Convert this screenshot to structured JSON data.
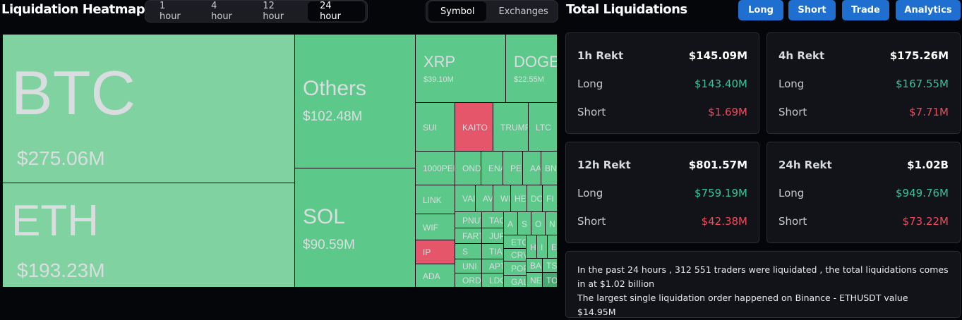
{
  "heatmap": {
    "title": "Liquidation Heatmap",
    "time_tabs": [
      "1 hour",
      "4 hour",
      "12 hour",
      "24 hour"
    ],
    "active_time": "24 hour",
    "view_tabs": [
      "Symbol",
      "Exchanges"
    ],
    "active_view": "Symbol",
    "colors": {
      "long": "#5cc98a",
      "long_light": "#80d3a0",
      "short": "#e5566a",
      "dark": "#4aa873"
    },
    "cells": [
      {
        "label": "BTC",
        "value": "$275.06M",
        "tone": "long_light"
      },
      {
        "label": "ETH",
        "value": "$193.23M",
        "tone": "long_light"
      },
      {
        "label": "Others",
        "value": "$102.48M",
        "tone": "long"
      },
      {
        "label": "SOL",
        "value": "$90.59M",
        "tone": "long"
      },
      {
        "label": "XRP",
        "value": "$39.10M",
        "tone": "long"
      },
      {
        "label": "DOGE",
        "value": "$22.55M",
        "tone": "long"
      },
      {
        "label": "SUI",
        "tone": "long"
      },
      {
        "label": "KAITO",
        "tone": "short"
      },
      {
        "label": "TRUMP",
        "tone": "long"
      },
      {
        "label": "LTC",
        "tone": "long"
      },
      {
        "label": "1000PEPE",
        "tone": "long"
      },
      {
        "label": "ONDO",
        "tone": "long"
      },
      {
        "label": "ENA",
        "tone": "long"
      },
      {
        "label": "PEI",
        "tone": "long"
      },
      {
        "label": "AA",
        "tone": "long"
      },
      {
        "label": "BN",
        "tone": "long"
      },
      {
        "label": "LINK",
        "tone": "long"
      },
      {
        "label": "WIF",
        "tone": "long"
      },
      {
        "label": "IP",
        "tone": "short"
      },
      {
        "label": "ADA",
        "tone": "long"
      },
      {
        "label": "VAI",
        "tone": "long"
      },
      {
        "label": "AV",
        "tone": "long"
      },
      {
        "label": "WI",
        "tone": "long"
      },
      {
        "label": "HE",
        "tone": "long"
      },
      {
        "label": "DO",
        "tone": "long"
      },
      {
        "label": "FI",
        "tone": "long"
      },
      {
        "label": "PNUT",
        "tone": "long"
      },
      {
        "label": "TAO",
        "tone": "long"
      },
      {
        "label": "FART",
        "tone": "long"
      },
      {
        "label": "JUP",
        "tone": "long"
      },
      {
        "label": "S",
        "tone": "long"
      },
      {
        "label": "TIA",
        "tone": "long"
      },
      {
        "label": "UNI",
        "tone": "long"
      },
      {
        "label": "APT",
        "tone": "long"
      },
      {
        "label": "ORDI",
        "tone": "long"
      },
      {
        "label": "LDO",
        "tone": "long"
      },
      {
        "label": "A",
        "tone": "long"
      },
      {
        "label": "S",
        "tone": "long"
      },
      {
        "label": "O",
        "tone": "long"
      },
      {
        "label": "N",
        "tone": "long"
      },
      {
        "label": "ETC",
        "tone": "long"
      },
      {
        "label": "CRV",
        "tone": "long"
      },
      {
        "label": "POP",
        "tone": "long"
      },
      {
        "label": "GAL",
        "tone": "long"
      },
      {
        "label": "H",
        "tone": "long"
      },
      {
        "label": "I",
        "tone": "long"
      },
      {
        "label": "E",
        "tone": "long"
      },
      {
        "label": "BA",
        "tone": "long"
      },
      {
        "label": "TS",
        "tone": "long"
      },
      {
        "label": "NE",
        "tone": "long"
      },
      {
        "label": "TO",
        "tone": "dark"
      }
    ]
  },
  "totals": {
    "title": "Total Liquidations",
    "buttons": [
      "Long",
      "Short",
      "Trade",
      "Analytics"
    ],
    "cards": [
      {
        "label": "1h Rekt",
        "total": "$145.09M",
        "long_label": "Long",
        "long": "$143.40M",
        "short_label": "Short",
        "short": "$1.69M"
      },
      {
        "label": "4h Rekt",
        "total": "$175.26M",
        "long_label": "Long",
        "long": "$167.55M",
        "short_label": "Short",
        "short": "$7.71M"
      },
      {
        "label": "12h Rekt",
        "total": "$801.57M",
        "long_label": "Long",
        "long": "$759.19M",
        "short_label": "Short",
        "short": "$42.38M"
      },
      {
        "label": "24h Rekt",
        "total": "$1.02B",
        "long_label": "Long",
        "long": "$949.76M",
        "short_label": "Short",
        "short": "$73.22M"
      }
    ],
    "summary_line1": "In the past 24 hours , 312 551 traders were liquidated , the total liquidations comes in at $1.02 billion",
    "summary_line2": "The largest single liquidation order happened on Binance - ETHUSDT value $14.95M"
  }
}
